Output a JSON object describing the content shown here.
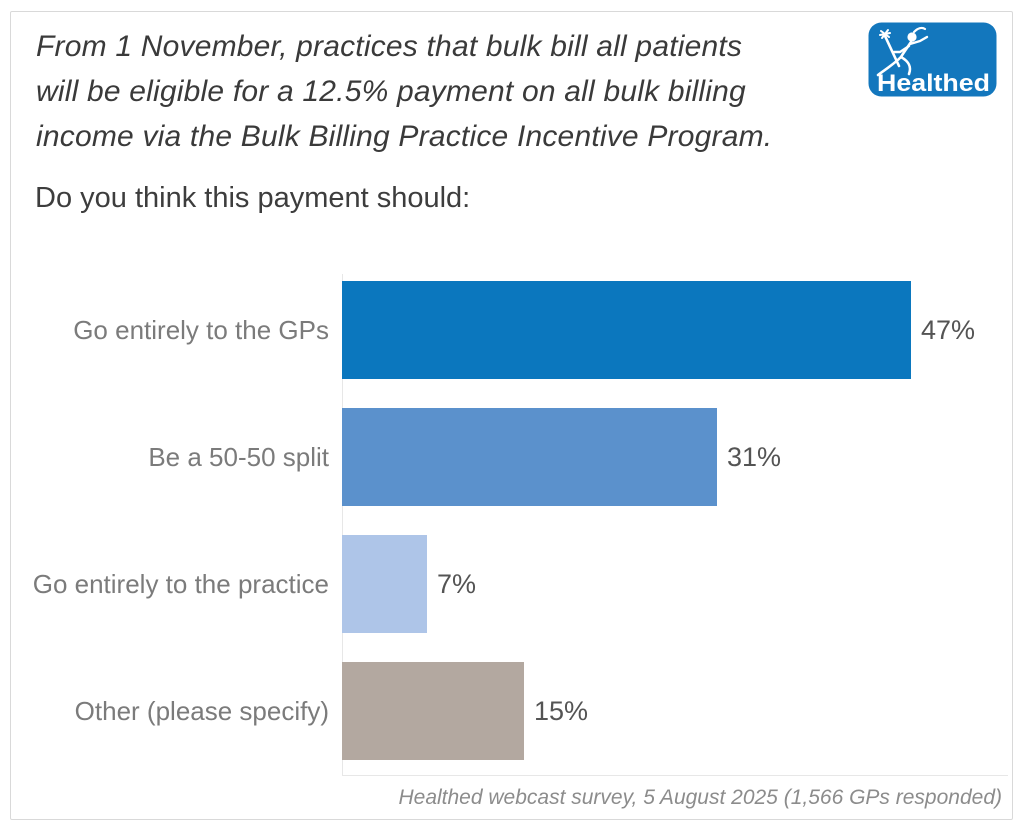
{
  "header": {
    "intro_lines": [
      "From 1 November, practices that bulk bill all patients",
      "will be eligible for a 12.5% payment on all bulk billing",
      "income via the Bulk Billing Practice Incentive Program."
    ],
    "logo": {
      "text": "Healthed",
      "background_color": "#1377bd",
      "foreground_color": "#ffffff"
    }
  },
  "chart_data": {
    "type": "bar",
    "orientation": "horizontal",
    "title": "Do you think this payment should:",
    "categories": [
      "Go entirely to the GPs",
      "Be a 50-50 split",
      "Go entirely to the practice",
      "Other (please specify)"
    ],
    "values": [
      47,
      31,
      7,
      15
    ],
    "value_labels": [
      "47%",
      "31%",
      "7%",
      "15%"
    ],
    "bar_colors": [
      "#0b77be",
      "#5b91cc",
      "#aec5e8",
      "#b3a8a0"
    ],
    "unit": "%",
    "xlim": [
      0,
      55
    ],
    "axis_tick_labels_hidden": true,
    "grid": false,
    "legend": "none",
    "value_label_position": "outside-end",
    "source": "Healthed webcast survey, 5 August 2025 (1,566 GPs responded)"
  }
}
